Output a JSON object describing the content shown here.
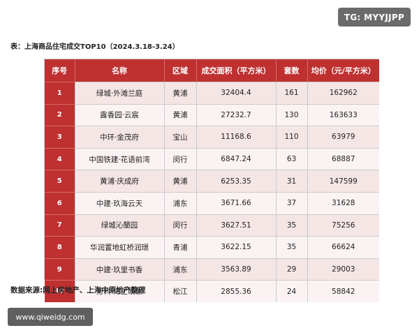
{
  "watermark_tg": "TG: MYYJJPP",
  "caption": "表：上海商品住宅成交TOP10（2024.3.18-3.24）",
  "table": {
    "headers": [
      "序号",
      "名称",
      "区域",
      "成交面积（平方米）",
      "套数",
      "均价（元/平方米）"
    ],
    "rows": [
      [
        "1",
        "绿城·外滩兰庭",
        "黄浦",
        "32404.4",
        "161",
        "162962"
      ],
      [
        "2",
        "露香园·云宸",
        "黄浦",
        "27232.7",
        "130",
        "163633"
      ],
      [
        "3",
        "中环·金茂府",
        "宝山",
        "11168.6",
        "110",
        "63979"
      ],
      [
        "4",
        "中国铁建·花语前湾",
        "闵行",
        "6847.24",
        "63",
        "68887"
      ],
      [
        "5",
        "黄浦·庆成府",
        "黄浦",
        "6253.35",
        "31",
        "147599"
      ],
      [
        "6",
        "中建·玖海云天",
        "浦东",
        "3671.66",
        "37",
        "31628"
      ],
      [
        "7",
        "绿城沁蘭园",
        "闵行",
        "3627.51",
        "35",
        "75256"
      ],
      [
        "8",
        "华润置地虹桥润璟",
        "青浦",
        "3622.15",
        "35",
        "66624"
      ],
      [
        "9",
        "中建·玖里书香",
        "浦东",
        "3563.89",
        "29",
        "29003"
      ],
      [
        "10",
        "万科·海上映象",
        "松江",
        "2855.36",
        "24",
        "58842"
      ]
    ]
  },
  "source": "数据来源:网上房地产、上海中原地产整理",
  "watermark_url": "www.qiweidg.com",
  "colors": {
    "header_red": "#bf3030",
    "row_pink": "#f5e6e6"
  }
}
